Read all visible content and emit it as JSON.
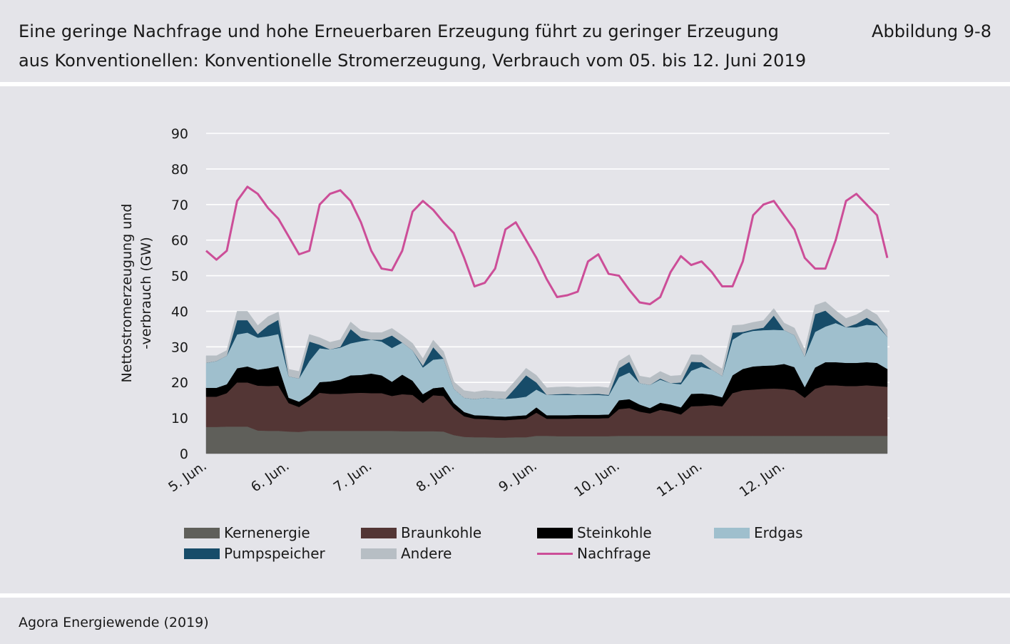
{
  "header": {
    "title": "Eine geringe Nachfrage und hohe Erneuerbaren Erzeugung führt zu geringer Erzeugung\naus Konventionellen: Konventionelle Stromerzeugung, Verbrauch vom 05. bis 12. Juni 2019",
    "figure_number": "Abbildung 9-8"
  },
  "footer": {
    "source": "Agora Energiewende (2019)"
  },
  "colors": {
    "background": "#e4e4e9",
    "Kernenergie": "#5f5f5a",
    "Braunkohle": "#533635",
    "Steinkohle": "#000000",
    "Erdgas": "#9fbfcd",
    "Pumpspeicher": "#174c69",
    "Andere": "#b7bec4",
    "Nachfrage": "#cc4e98"
  },
  "legend": [
    {
      "key": "Kernenergie",
      "label": "Kernenergie",
      "kind": "area"
    },
    {
      "key": "Braunkohle",
      "label": "Braunkohle",
      "kind": "area"
    },
    {
      "key": "Steinkohle",
      "label": "Steinkohle",
      "kind": "area"
    },
    {
      "key": "Erdgas",
      "label": "Erdgas",
      "kind": "area"
    },
    {
      "key": "Pumpspeicher",
      "label": "Pumpspeicher",
      "kind": "area"
    },
    {
      "key": "Andere",
      "label": "Andere",
      "kind": "area"
    },
    {
      "key": "Nachfrage",
      "label": "Nachfrage",
      "kind": "line"
    }
  ],
  "chart_data": {
    "type": "area",
    "ylabel": "Nettostromerzeugung und\n-verbrauch (GW)",
    "ylim": [
      0,
      90
    ],
    "yticks": [
      0,
      10,
      20,
      30,
      40,
      50,
      60,
      70,
      80,
      90
    ],
    "xlim": [
      0,
      8.25
    ],
    "xticks": [
      {
        "x": 0,
        "label": "5. Jun."
      },
      {
        "x": 1,
        "label": "6. Jun."
      },
      {
        "x": 2,
        "label": "7. Jun."
      },
      {
        "x": 3,
        "label": "8. Jun."
      },
      {
        "x": 4,
        "label": "9. Jun."
      },
      {
        "x": 5,
        "label": "10. Jun."
      },
      {
        "x": 6,
        "label": "11. Jun."
      },
      {
        "x": 7,
        "label": "12. Jun."
      }
    ],
    "grid": true,
    "legend_position": "bottom",
    "x": [
      0,
      0.125,
      0.25,
      0.375,
      0.5,
      0.625,
      0.75,
      0.875,
      1,
      1.125,
      1.25,
      1.375,
      1.5,
      1.625,
      1.75,
      1.875,
      2,
      2.125,
      2.25,
      2.375,
      2.5,
      2.625,
      2.75,
      2.875,
      3,
      3.125,
      3.25,
      3.375,
      3.5,
      3.625,
      3.75,
      3.875,
      4,
      4.125,
      4.25,
      4.375,
      4.5,
      4.625,
      4.75,
      4.875,
      5,
      5.125,
      5.25,
      5.375,
      5.5,
      5.625,
      5.75,
      5.875,
      6,
      6.125,
      6.25,
      6.375,
      6.5,
      6.625,
      6.75,
      6.875,
      7,
      7.125,
      7.25,
      7.375,
      7.5,
      7.625,
      7.75,
      7.875,
      8,
      8.125,
      8.25
    ],
    "series": [
      {
        "name": "Kernenergie",
        "values": [
          7.5,
          7.5,
          7.6,
          7.6,
          7.6,
          6.5,
          6.4,
          6.4,
          6.2,
          6.1,
          6.4,
          6.4,
          6.4,
          6.4,
          6.4,
          6.4,
          6.4,
          6.4,
          6.4,
          6.3,
          6.3,
          6.3,
          6.3,
          6.2,
          5.2,
          4.7,
          4.6,
          4.6,
          4.5,
          4.5,
          4.6,
          4.6,
          5.0,
          5.0,
          4.9,
          4.9,
          4.9,
          4.9,
          4.9,
          4.9,
          5.0,
          5.0,
          5.0,
          5.0,
          5.0,
          5.0,
          5.0,
          5.0,
          5.0,
          5.0,
          5.0,
          5.0,
          5.0,
          5.0,
          5.0,
          5.0,
          5.0,
          5.0,
          5.0,
          5.0,
          5.0,
          5.0,
          5.0,
          5.0,
          5.0,
          5.0,
          5.0
        ]
      },
      {
        "name": "Braunkohle",
        "values": [
          8.5,
          8.5,
          9.4,
          12.4,
          12.4,
          12.6,
          12.6,
          12.7,
          8.0,
          7.0,
          8.6,
          10.7,
          10.4,
          10.4,
          10.6,
          10.7,
          10.6,
          10.6,
          9.8,
          10.4,
          10.2,
          7.9,
          10.1,
          10.0,
          7.5,
          5.8,
          5.2,
          5.1,
          5.0,
          4.9,
          5.0,
          5.2,
          6.5,
          4.8,
          4.9,
          4.9,
          5.0,
          5.0,
          5.0,
          5.1,
          7.5,
          7.8,
          6.8,
          6.3,
          7.3,
          6.8,
          6.0,
          8.3,
          8.4,
          8.6,
          8.3,
          12.0,
          12.8,
          13.0,
          13.2,
          13.3,
          13.2,
          12.8,
          10.7,
          13.2,
          14.2,
          14.2,
          14.0,
          14.0,
          14.2,
          14.0,
          13.8
        ]
      },
      {
        "name": "Steinkohle",
        "values": [
          2.5,
          2.5,
          2.5,
          4.0,
          4.5,
          4.5,
          5.0,
          5.5,
          1.5,
          1.5,
          1.5,
          3.0,
          3.5,
          4.0,
          5.0,
          5.0,
          5.5,
          5.0,
          4.0,
          5.5,
          4.0,
          2.5,
          2.0,
          2.5,
          1.5,
          1.2,
          1.0,
          1.0,
          1.0,
          1.0,
          1.0,
          1.0,
          1.5,
          1.0,
          1.0,
          1.0,
          1.0,
          1.0,
          1.0,
          1.0,
          2.5,
          2.5,
          2.0,
          1.5,
          2.0,
          2.0,
          2.0,
          3.5,
          3.5,
          3.0,
          2.5,
          5.0,
          6.0,
          6.5,
          6.5,
          6.5,
          7.0,
          6.5,
          3.0,
          6.0,
          6.5,
          6.5,
          6.5,
          6.5,
          6.5,
          6.5,
          5.0
        ]
      },
      {
        "name": "Erdgas",
        "values": [
          7.0,
          7.5,
          8.0,
          9.5,
          9.5,
          9.0,
          9.0,
          9.0,
          6.0,
          6.5,
          9.5,
          9.5,
          9.0,
          9.0,
          9.0,
          9.5,
          9.5,
          9.5,
          9.5,
          9.0,
          8.5,
          7.5,
          8.0,
          8.0,
          4.0,
          4.0,
          4.5,
          5.0,
          5.0,
          5.0,
          5.0,
          5.2,
          5.0,
          5.7,
          5.7,
          5.7,
          5.6,
          5.6,
          5.6,
          5.3,
          6.5,
          7.5,
          6.0,
          6.5,
          6.5,
          6.0,
          6.5,
          6.5,
          7.5,
          7.0,
          6.0,
          10.0,
          10.0,
          10.0,
          10.0,
          10.0,
          9.5,
          9.0,
          8.5,
          10.0,
          10.0,
          11.0,
          10.0,
          10.0,
          10.5,
          10.5,
          9.0
        ]
      },
      {
        "name": "Pumpspeicher",
        "values": [
          0.0,
          0.0,
          0.0,
          4.0,
          3.5,
          1.0,
          3.0,
          4.0,
          0.0,
          0.0,
          5.5,
          1.0,
          0.0,
          0.2,
          4.0,
          1.0,
          0.0,
          0.5,
          3.5,
          0.0,
          0.0,
          0.5,
          3.5,
          0.0,
          0.0,
          0.0,
          0.0,
          0.0,
          0.0,
          0.0,
          3.0,
          6.0,
          2.0,
          0.0,
          0.2,
          0.3,
          0.1,
          0.2,
          0.3,
          0.2,
          2.5,
          3.0,
          0.0,
          0.0,
          0.3,
          0.0,
          0.5,
          2.5,
          1.3,
          0.0,
          0.0,
          2.0,
          0.4,
          0.4,
          0.7,
          4.0,
          0.0,
          0.0,
          0.0,
          5.0,
          4.5,
          1.0,
          0.0,
          1.0,
          2.0,
          0.5,
          0.0
        ]
      },
      {
        "name": "Andere",
        "values": [
          2.0,
          1.5,
          1.5,
          2.5,
          2.5,
          2.4,
          2.5,
          2.2,
          2.0,
          2.0,
          2.0,
          2.0,
          2.0,
          2.0,
          2.0,
          2.0,
          2.0,
          2.0,
          2.0,
          2.0,
          2.0,
          2.0,
          2.0,
          2.0,
          2.0,
          2.0,
          2.0,
          2.0,
          2.0,
          2.0,
          2.0,
          2.0,
          2.0,
          2.0,
          2.0,
          2.0,
          2.0,
          2.0,
          2.0,
          2.0,
          2.0,
          2.0,
          2.0,
          2.0,
          2.0,
          2.0,
          2.0,
          2.0,
          2.0,
          2.0,
          2.0,
          2.0,
          2.0,
          2.0,
          2.0,
          2.0,
          2.0,
          2.0,
          2.0,
          2.5,
          2.5,
          2.5,
          2.5,
          2.5,
          2.5,
          2.5,
          2.0
        ]
      },
      {
        "name": "Nachfrage",
        "kind": "line",
        "values": [
          57,
          54.5,
          57,
          71,
          75,
          73,
          69,
          66,
          61,
          56,
          57,
          70,
          73,
          74,
          71,
          65,
          57,
          52,
          51.5,
          57,
          68,
          71,
          68.5,
          65,
          62,
          55,
          47,
          48,
          52,
          63,
          65,
          60,
          55,
          49,
          44,
          44.5,
          45.5,
          54,
          56,
          50.5,
          50,
          46,
          42.5,
          42,
          44,
          51,
          55.5,
          53,
          54,
          51,
          47,
          47,
          54,
          67,
          70,
          71,
          67,
          63,
          55,
          52,
          52,
          60,
          71,
          73,
          70,
          67,
          55
        ]
      }
    ]
  }
}
